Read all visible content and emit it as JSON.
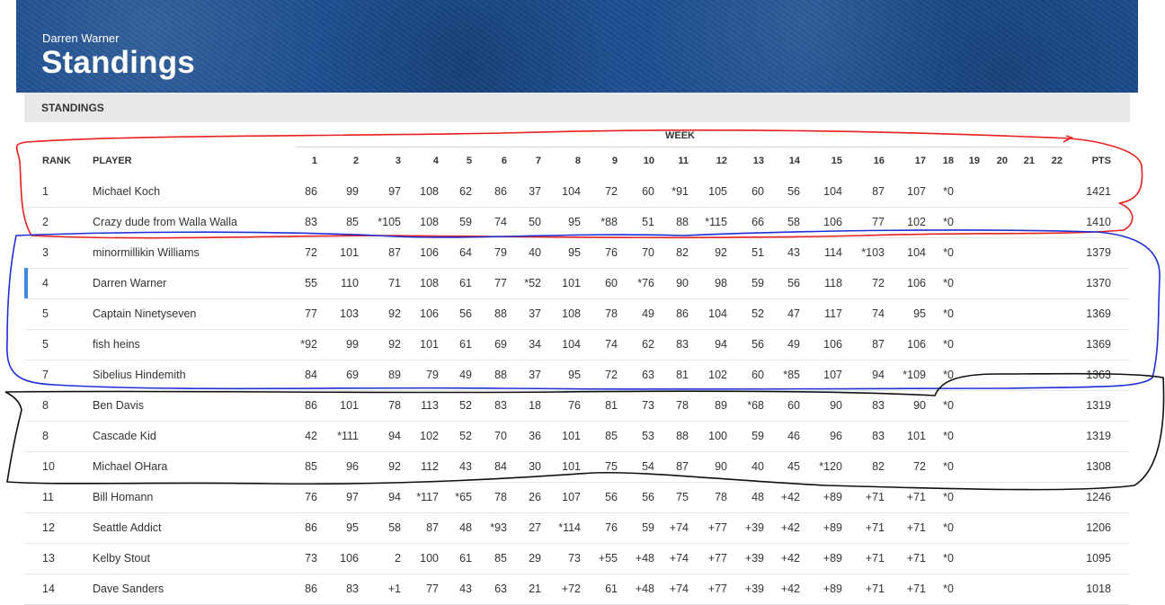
{
  "header": {
    "owner": "Darren Warner",
    "title": "Standings"
  },
  "section": {
    "label": "STANDINGS"
  },
  "table": {
    "week_label": "WEEK",
    "rank_header": "RANK",
    "player_header": "PLAYER",
    "week_headers": [
      "1",
      "2",
      "3",
      "4",
      "5",
      "6",
      "7",
      "8",
      "9",
      "10",
      "11",
      "12",
      "13",
      "14",
      "15",
      "16",
      "17",
      "18",
      "19",
      "20",
      "21",
      "22"
    ],
    "pts_header": "PTS",
    "rows": [
      {
        "rank": "1",
        "player": "Michael Koch",
        "weeks": [
          "86",
          "99",
          "97",
          "108",
          "62",
          "86",
          "37",
          "104",
          "72",
          "60",
          "*91",
          "105",
          "60",
          "56",
          "104",
          "87",
          "107",
          "*0",
          "",
          "",
          "",
          ""
        ],
        "pts": "1421"
      },
      {
        "rank": "2",
        "player": "Crazy dude from Walla Walla",
        "weeks": [
          "83",
          "85",
          "*105",
          "108",
          "59",
          "74",
          "50",
          "95",
          "*88",
          "51",
          "88",
          "*115",
          "66",
          "58",
          "106",
          "77",
          "102",
          "*0",
          "",
          "",
          "",
          ""
        ],
        "pts": "1410"
      },
      {
        "rank": "3",
        "player": "minormillikin Williams",
        "weeks": [
          "72",
          "101",
          "87",
          "106",
          "64",
          "79",
          "40",
          "95",
          "76",
          "70",
          "82",
          "92",
          "51",
          "43",
          "114",
          "*103",
          "104",
          "*0",
          "",
          "",
          "",
          ""
        ],
        "pts": "1379"
      },
      {
        "rank": "4",
        "player": "Darren Warner",
        "weeks": [
          "55",
          "110",
          "71",
          "108",
          "61",
          "77",
          "*52",
          "101",
          "60",
          "*76",
          "90",
          "98",
          "59",
          "56",
          "118",
          "72",
          "106",
          "*0",
          "",
          "",
          "",
          ""
        ],
        "pts": "1370",
        "current": true
      },
      {
        "rank": "5",
        "player": "Captain Ninetyseven",
        "weeks": [
          "77",
          "103",
          "92",
          "106",
          "56",
          "88",
          "37",
          "108",
          "78",
          "49",
          "86",
          "104",
          "52",
          "47",
          "117",
          "74",
          "95",
          "*0",
          "",
          "",
          "",
          ""
        ],
        "pts": "1369"
      },
      {
        "rank": "5",
        "player": "fish heins",
        "weeks": [
          "*92",
          "99",
          "92",
          "101",
          "61",
          "69",
          "34",
          "104",
          "74",
          "62",
          "83",
          "94",
          "56",
          "49",
          "106",
          "87",
          "106",
          "*0",
          "",
          "",
          "",
          ""
        ],
        "pts": "1369"
      },
      {
        "rank": "7",
        "player": "Sibelius Hindemith",
        "weeks": [
          "84",
          "69",
          "89",
          "79",
          "49",
          "88",
          "37",
          "95",
          "72",
          "63",
          "81",
          "102",
          "60",
          "*85",
          "107",
          "94",
          "*109",
          "*0",
          "",
          "",
          "",
          ""
        ],
        "pts": "1363"
      },
      {
        "rank": "8",
        "player": "Ben Davis",
        "weeks": [
          "86",
          "101",
          "78",
          "113",
          "52",
          "83",
          "18",
          "76",
          "81",
          "73",
          "78",
          "89",
          "*68",
          "60",
          "90",
          "83",
          "90",
          "*0",
          "",
          "",
          "",
          ""
        ],
        "pts": "1319"
      },
      {
        "rank": "8",
        "player": "Cascade Kid",
        "weeks": [
          "42",
          "*111",
          "94",
          "102",
          "52",
          "70",
          "36",
          "101",
          "85",
          "53",
          "88",
          "100",
          "59",
          "46",
          "96",
          "83",
          "101",
          "*0",
          "",
          "",
          "",
          ""
        ],
        "pts": "1319"
      },
      {
        "rank": "10",
        "player": "Michael OHara",
        "weeks": [
          "85",
          "96",
          "92",
          "112",
          "43",
          "84",
          "30",
          "101",
          "75",
          "54",
          "87",
          "90",
          "40",
          "45",
          "*120",
          "82",
          "72",
          "*0",
          "",
          "",
          "",
          ""
        ],
        "pts": "1308"
      },
      {
        "rank": "11",
        "player": "Bill Homann",
        "weeks": [
          "76",
          "97",
          "94",
          "*117",
          "*65",
          "78",
          "26",
          "107",
          "56",
          "56",
          "75",
          "78",
          "48",
          "+42",
          "+89",
          "+71",
          "+71",
          "*0",
          "",
          "",
          "",
          ""
        ],
        "pts": "1246"
      },
      {
        "rank": "12",
        "player": "Seattle Addict",
        "weeks": [
          "86",
          "95",
          "58",
          "87",
          "48",
          "*93",
          "27",
          "*114",
          "76",
          "59",
          "+74",
          "+77",
          "+39",
          "+42",
          "+89",
          "+71",
          "+71",
          "*0",
          "",
          "",
          "",
          ""
        ],
        "pts": "1206"
      },
      {
        "rank": "13",
        "player": "Kelby Stout",
        "weeks": [
          "73",
          "106",
          "2",
          "100",
          "61",
          "85",
          "29",
          "73",
          "+55",
          "+48",
          "+74",
          "+77",
          "+39",
          "+42",
          "+89",
          "+71",
          "+71",
          "*0",
          "",
          "",
          "",
          ""
        ],
        "pts": "1095"
      },
      {
        "rank": "14",
        "player": "Dave Sanders",
        "weeks": [
          "86",
          "83",
          "+1",
          "77",
          "43",
          "63",
          "21",
          "+72",
          "61",
          "+48",
          "+74",
          "+77",
          "+39",
          "+42",
          "+89",
          "+71",
          "+71",
          "*0",
          "",
          "",
          "",
          ""
        ],
        "pts": "1018"
      }
    ]
  },
  "annotation_colors": {
    "red": "#e8201f",
    "blue": "#1f2fd6",
    "black": "#111111"
  },
  "theme": {
    "hero_bg": "#1d4f91",
    "section_bg": "#e8e9ea",
    "highlight": "#3d8bd9"
  }
}
